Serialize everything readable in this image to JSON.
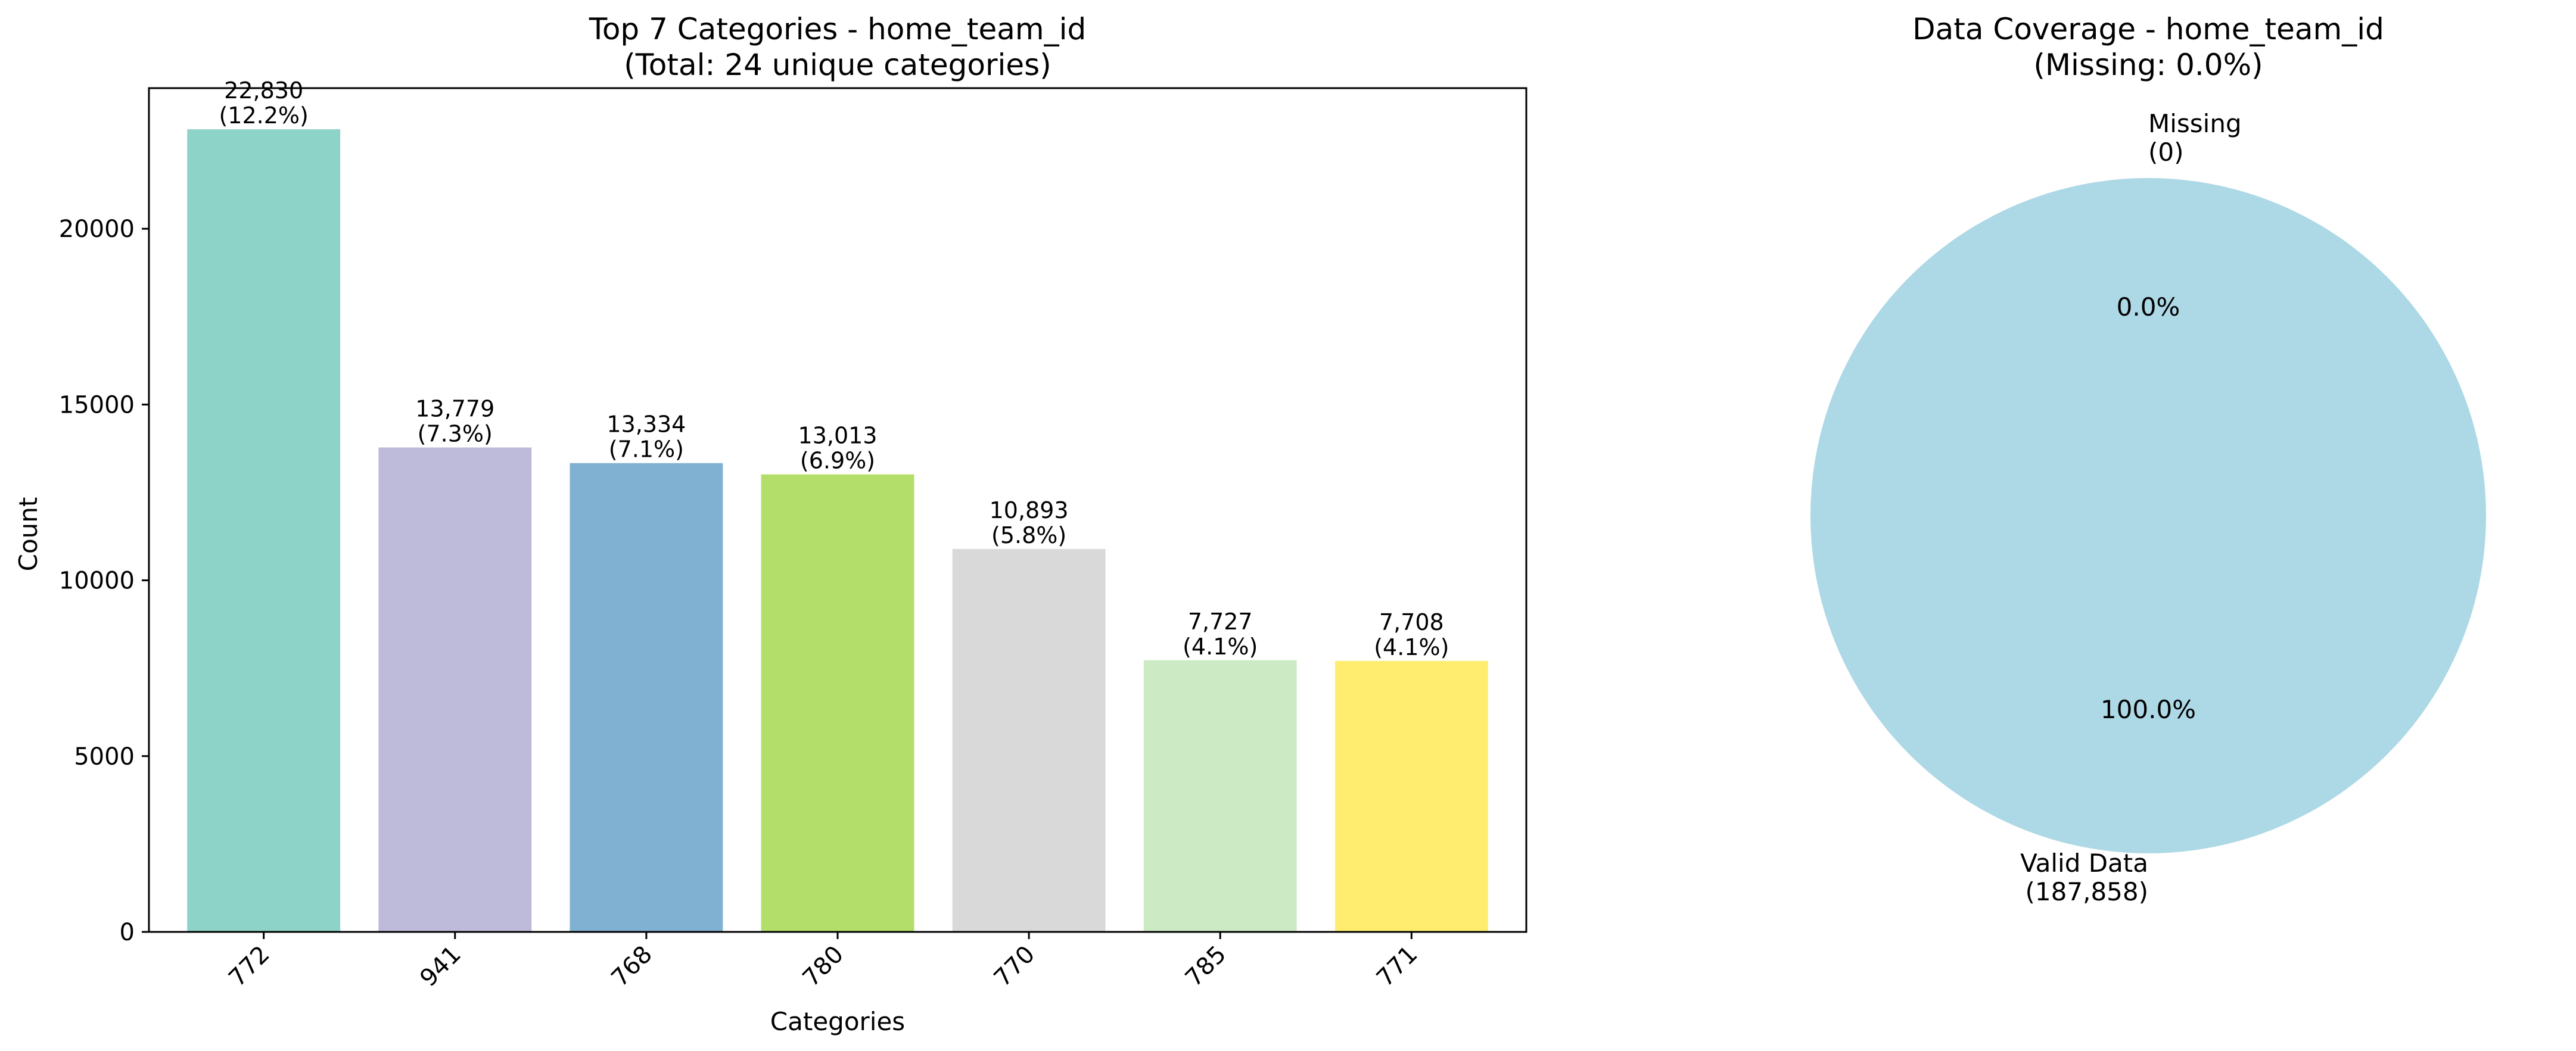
{
  "chart_data": [
    {
      "type": "bar",
      "title": "Top 7 Categories - home_team_id",
      "subtitle": "(Total: 24 unique categories)",
      "xlabel": "Categories",
      "ylabel": "Count",
      "ylim": [
        0,
        24000
      ],
      "yticks": [
        0,
        5000,
        10000,
        15000,
        20000
      ],
      "categories": [
        "772",
        "941",
        "768",
        "780",
        "770",
        "785",
        "771"
      ],
      "values": [
        22830,
        13779,
        13334,
        13013,
        10893,
        7727,
        7708
      ],
      "value_labels": [
        "22,830",
        "13,779",
        "13,334",
        "13,013",
        "10,893",
        "7,727",
        "7,708"
      ],
      "pct_labels": [
        "(12.2%)",
        "(7.3%)",
        "(7.1%)",
        "(6.9%)",
        "(5.8%)",
        "(4.1%)",
        "(4.1%)"
      ],
      "colors": [
        "#8dd3c7",
        "#bebada",
        "#80b1d3",
        "#b3de69",
        "#d9d9d9",
        "#ccebc5",
        "#ffed6f"
      ],
      "grid": false
    },
    {
      "type": "pie",
      "title": "Data Coverage - home_team_id",
      "subtitle": "(Missing: 0.0%)",
      "slices": [
        {
          "label": "Valid Data",
          "count_label": "(187,858)",
          "value": 187858,
          "pct_label": "100.0%",
          "color": "#add8e6"
        },
        {
          "label": "Missing",
          "count_label": "(0)",
          "value": 0,
          "pct_label": "0.0%",
          "color": "#f08080"
        }
      ]
    }
  ]
}
